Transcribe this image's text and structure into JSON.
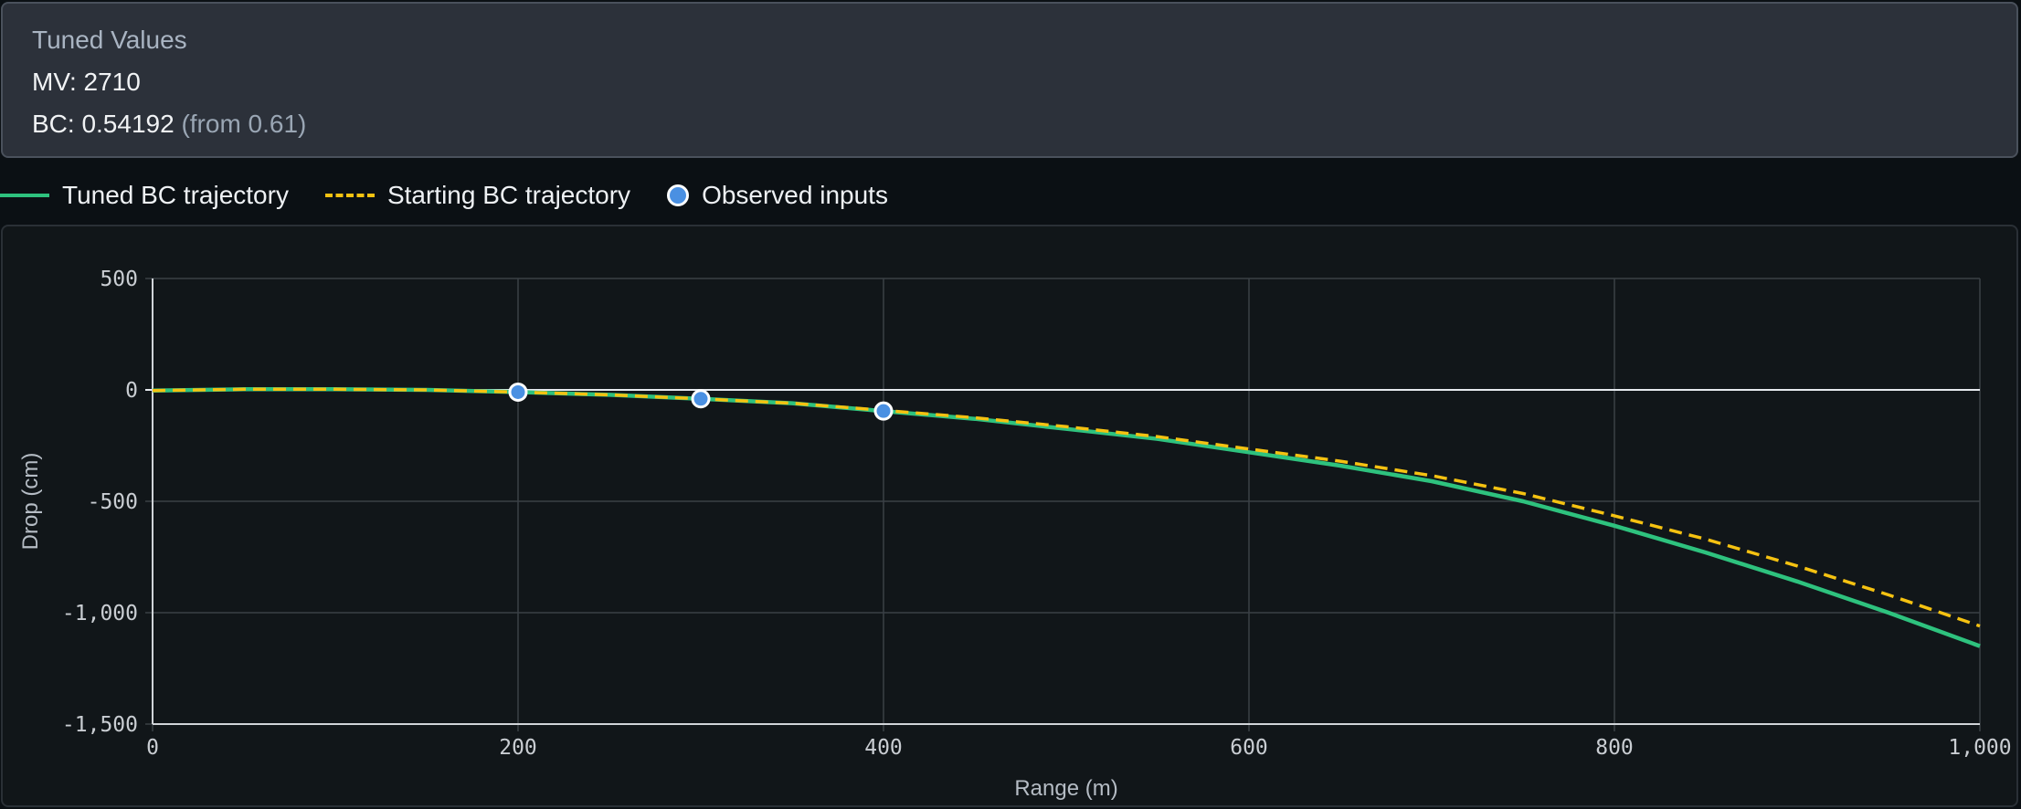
{
  "tuned": {
    "title": "Tuned Values",
    "mv_line": "MV: 2710",
    "bc_line": "BC: 0.54192",
    "bc_from": "(from 0.61)"
  },
  "legend": {
    "tuned": "Tuned BC trajectory",
    "starting": "Starting BC trajectory",
    "observed": "Observed inputs"
  },
  "colors": {
    "tuned": "#2ec27e",
    "starting": "#f5c211",
    "observed": "#4a90e2"
  },
  "chart_data": {
    "type": "line",
    "xlabel": "Range (m)",
    "ylabel": "Drop (cm)",
    "xlim": [
      0,
      1000
    ],
    "ylim": [
      -1500,
      500
    ],
    "x_ticks": [
      0,
      200,
      400,
      600,
      800,
      1000
    ],
    "x_tick_labels": [
      "0",
      "200",
      "400",
      "600",
      "800",
      "1,000"
    ],
    "y_ticks": [
      500,
      0,
      -500,
      -1000,
      -1500
    ],
    "y_tick_labels": [
      "500",
      "0",
      "-500",
      "-1,000",
      "-1,500"
    ],
    "grid": true,
    "series": [
      {
        "name": "Tuned BC trajectory",
        "style": "solid",
        "x": [
          0,
          50,
          100,
          150,
          200,
          250,
          300,
          350,
          400,
          450,
          500,
          550,
          600,
          650,
          700,
          750,
          800,
          850,
          900,
          950,
          1000
        ],
        "y": [
          -3,
          3,
          3,
          0,
          -10,
          -22,
          -40,
          -60,
          -95,
          -130,
          -175,
          -220,
          -280,
          -340,
          -410,
          -500,
          -610,
          -730,
          -860,
          -1000,
          -1150
        ]
      },
      {
        "name": "Starting BC trajectory",
        "style": "dashed",
        "x": [
          0,
          50,
          100,
          150,
          200,
          250,
          300,
          350,
          400,
          450,
          500,
          550,
          600,
          650,
          700,
          750,
          800,
          850,
          900,
          950,
          1000
        ],
        "y": [
          -3,
          3,
          3,
          0,
          -10,
          -22,
          -40,
          -60,
          -92,
          -125,
          -165,
          -210,
          -265,
          -320,
          -385,
          -465,
          -565,
          -670,
          -790,
          -920,
          -1060
        ]
      },
      {
        "name": "Observed inputs",
        "style": "points",
        "x": [
          200,
          300,
          400
        ],
        "y": [
          -10,
          -40,
          -95
        ]
      }
    ]
  }
}
